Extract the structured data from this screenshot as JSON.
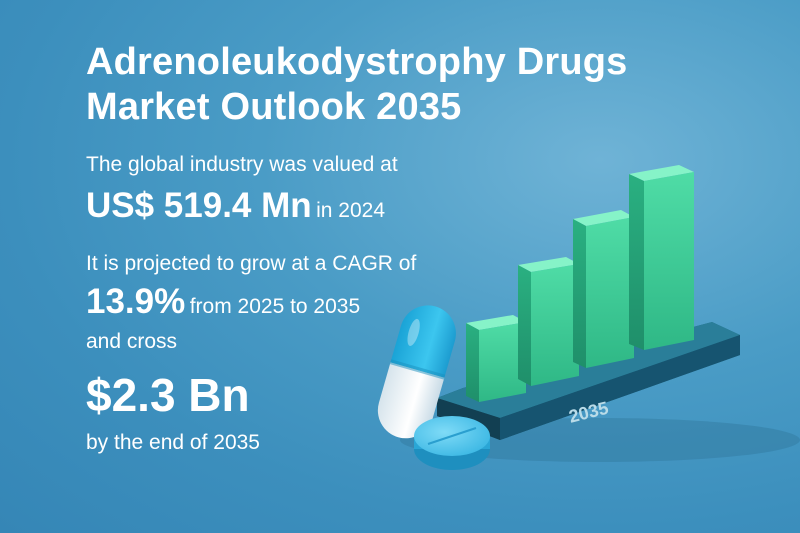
{
  "title_line1": "Adrenoleukodystrophy Drugs",
  "title_line2": "Market Outlook 2035",
  "valued_intro": "The global industry was valued at",
  "value_2024": "US$ 519.4 Mn",
  "value_year": "in 2024",
  "cagr_intro": "It is projected to grow at a CAGR of",
  "cagr_value": "13.9%",
  "cagr_period": "from 2025 to 2035",
  "cross_text": "and cross",
  "value_2035": "$2.3 Bn",
  "end_text": "by the end of 2035",
  "platform_label": "2035",
  "colors": {
    "bar_front": "#3fcf9a",
    "bar_top": "#7ef0c2",
    "platform": "#1c5f77",
    "capsule_blue": "#2db8e6",
    "tablet": "#46c1ea"
  }
}
